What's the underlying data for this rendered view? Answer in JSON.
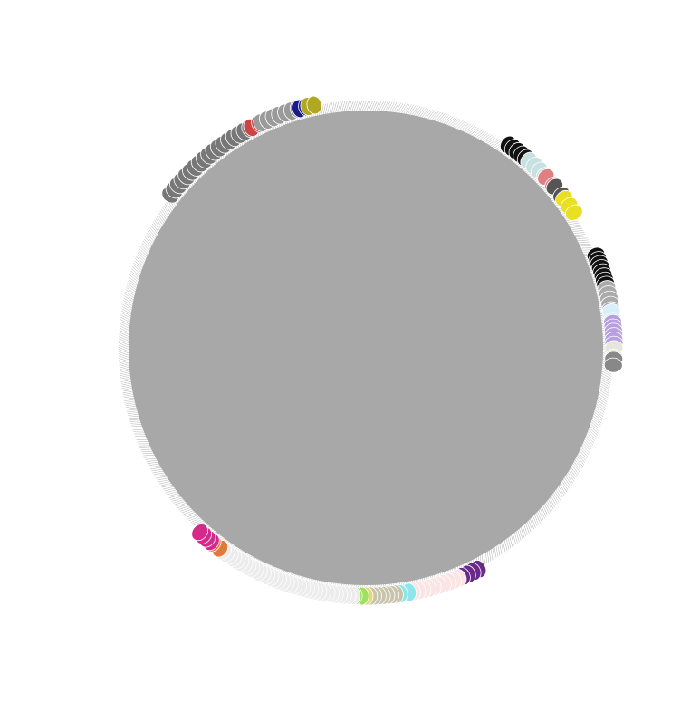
{
  "diagram": {
    "type": "circular-network",
    "center_fill": "#a8a8a8",
    "edge_color": "#9a9a9a",
    "node_stroke": "#ffffff",
    "clusters": [
      {
        "name": "top-left-dark-gray",
        "start_deg": -142,
        "end_deg": -118,
        "count": 18,
        "color": "#777777"
      },
      {
        "name": "top-red",
        "start_deg": -117.5,
        "end_deg": -115.5,
        "count": 2,
        "color": "#cc4444"
      },
      {
        "name": "top-gray",
        "start_deg": -115,
        "end_deg": -106,
        "count": 7,
        "color": "#9a9a9a"
      },
      {
        "name": "top-navy",
        "start_deg": -105.5,
        "end_deg": -104,
        "count": 2,
        "color": "#1a1a8a"
      },
      {
        "name": "top-olive",
        "start_deg": -103.5,
        "end_deg": -102,
        "count": 2,
        "color": "#b0a820"
      },
      {
        "name": "right-black-1",
        "start_deg": -55,
        "end_deg": -50,
        "count": 5,
        "color": "#111111"
      },
      {
        "name": "right-light-cyan",
        "start_deg": -49,
        "end_deg": -44,
        "count": 4,
        "color": "#c8e0e0"
      },
      {
        "name": "right-salmon",
        "start_deg": -43.5,
        "end_deg": -41,
        "count": 2,
        "color": "#e08080"
      },
      {
        "name": "right-dark-gray",
        "start_deg": -40.5,
        "end_deg": -38,
        "count": 2,
        "color": "#555555"
      },
      {
        "name": "right-yellow",
        "start_deg": -37,
        "end_deg": -33,
        "count": 3,
        "color": "#e8e020"
      },
      {
        "name": "right-black-2",
        "start_deg": -22,
        "end_deg": -15,
        "count": 8,
        "color": "#111111"
      },
      {
        "name": "right-gray",
        "start_deg": -14,
        "end_deg": -9,
        "count": 5,
        "color": "#aaaaaa"
      },
      {
        "name": "right-azure",
        "start_deg": -8.5,
        "end_deg": -6.5,
        "count": 2,
        "color": "#d8eef8"
      },
      {
        "name": "right-lavender",
        "start_deg": -6,
        "end_deg": -1,
        "count": 6,
        "color": "#b8a0e0"
      },
      {
        "name": "right-beige",
        "start_deg": 0,
        "end_deg": 2,
        "count": 2,
        "color": "#e6e6dc"
      },
      {
        "name": "right-gray-2",
        "start_deg": 2.5,
        "end_deg": 4,
        "count": 2,
        "color": "#888888"
      },
      {
        "name": "bottom-purple",
        "start_deg": 63,
        "end_deg": 67,
        "count": 4,
        "color": "#6a2a8a"
      },
      {
        "name": "bottom-pink",
        "start_deg": 68,
        "end_deg": 79,
        "count": 10,
        "color": "#fbe4e4"
      },
      {
        "name": "bottom-cyan",
        "start_deg": 80,
        "end_deg": 82,
        "count": 2,
        "color": "#8ee6ea"
      },
      {
        "name": "bottom-tan",
        "start_deg": 83,
        "end_deg": 89,
        "count": 7,
        "color": "#c8c4ac"
      },
      {
        "name": "bottom-khaki",
        "start_deg": 89.5,
        "end_deg": 90.5,
        "count": 1,
        "color": "#e8d870"
      },
      {
        "name": "bottom-lime",
        "start_deg": 91,
        "end_deg": 92.5,
        "count": 2,
        "color": "#a0e060"
      },
      {
        "name": "bottom-light-gray",
        "start_deg": 93,
        "end_deg": 125,
        "count": 34,
        "color": "#ececec"
      },
      {
        "name": "bottom-orange",
        "start_deg": 126,
        "end_deg": 128,
        "count": 2,
        "color": "#e07a3a"
      },
      {
        "name": "bottom-magenta",
        "start_deg": 128.5,
        "end_deg": 132,
        "count": 4,
        "color": "#d42a8a"
      }
    ]
  }
}
